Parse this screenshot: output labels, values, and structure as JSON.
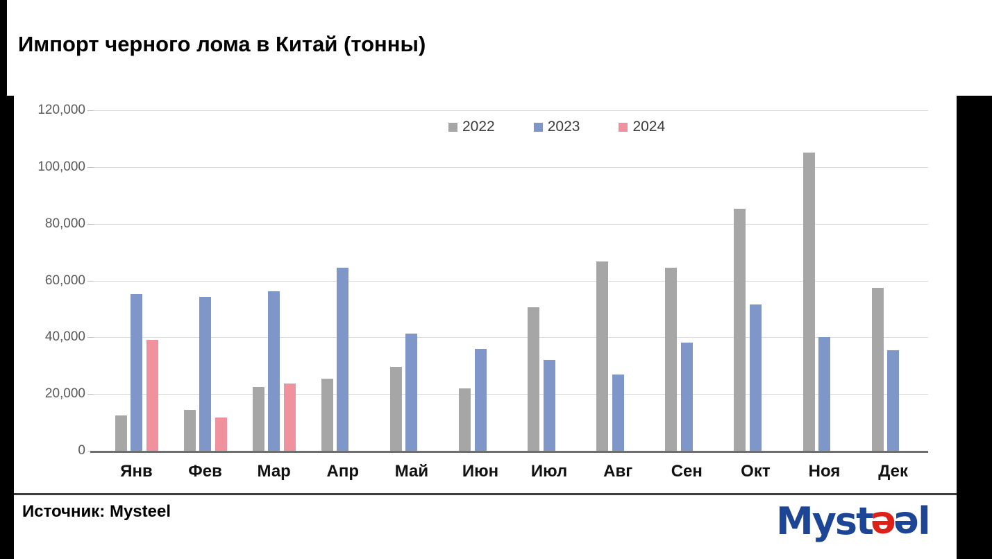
{
  "title": "Импорт черного лома в Китай (тонны)",
  "source": {
    "label": "Источник: Mysteel"
  },
  "logo": {
    "part1": "Myst",
    "part2": "e",
    "part3": "e",
    "part4": "l",
    "blue": "#1d4596",
    "red": "#dd2018"
  },
  "colors": {
    "bar_2022": "#a6a6a6",
    "bar_2023": "#7e96c8",
    "bar_2024": "#f0919e",
    "gridline": "#d9d9d9",
    "axis_labels": "#595959",
    "month_labels": "#111111",
    "slide_border": "#000000"
  },
  "chart_data": {
    "type": "bar",
    "title": "Импорт черного лома в Китай (тонны)",
    "categories": [
      "Янв",
      "Фев",
      "Мар",
      "Апр",
      "Май",
      "Июн",
      "Июл",
      "Авг",
      "Сен",
      "Окт",
      "Ноя",
      "Дек"
    ],
    "series": [
      {
        "name": "2022",
        "color": "#a6a6a6",
        "values": [
          12500,
          14400,
          22600,
          25300,
          29500,
          22100,
          50600,
          66600,
          64600,
          85400,
          105000,
          57400
        ]
      },
      {
        "name": "2023",
        "color": "#7e96c8",
        "values": [
          55300,
          54200,
          56300,
          64400,
          41400,
          36000,
          31900,
          27000,
          38200,
          51500,
          40100,
          35400
        ]
      },
      {
        "name": "2024",
        "color": "#f0919e",
        "values": [
          39200,
          11800,
          23800,
          null,
          null,
          null,
          null,
          null,
          null,
          null,
          null,
          null
        ]
      }
    ],
    "xlabel": "",
    "ylabel": "",
    "ylim": [
      0,
      120000
    ],
    "ytick_interval": 20000,
    "ytick_labels": [
      "0",
      "20,000",
      "40,000",
      "60,000",
      "80,000",
      "100,000",
      "120,000"
    ],
    "grid": "horizontal",
    "legend_position": "top-center"
  }
}
